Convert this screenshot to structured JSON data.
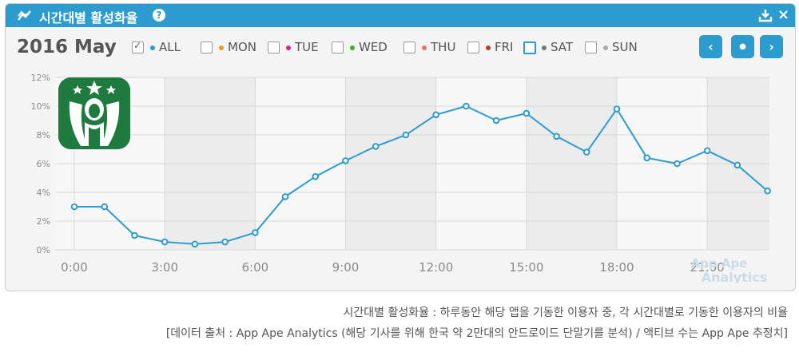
{
  "header": {
    "title": "시간대별 활성화율",
    "help_label": "?"
  },
  "controls": {
    "month": "2016 May",
    "filters": [
      {
        "label": "ALL",
        "color": "#2b9bd0",
        "checked": true
      },
      {
        "label": "MON",
        "color": "#e0a020",
        "checked": false
      },
      {
        "label": "TUE",
        "color": "#c0308a",
        "checked": false
      },
      {
        "label": "WED",
        "color": "#44aa33",
        "checked": false
      },
      {
        "label": "THU",
        "color": "#f07070",
        "checked": false
      },
      {
        "label": "FRI",
        "color": "#c03a2a",
        "checked": false
      },
      {
        "label": "SAT",
        "color": "#777777",
        "checked": false
      },
      {
        "label": "SUN",
        "color": "#aaaaaa",
        "checked": false
      }
    ]
  },
  "chart_data": {
    "type": "line",
    "x": [
      0,
      1,
      2,
      3,
      4,
      5,
      6,
      7,
      8,
      9,
      10,
      11,
      12,
      13,
      14,
      15,
      16,
      17,
      18,
      19,
      20,
      21,
      22,
      23
    ],
    "series": [
      {
        "values": [
          3.0,
          3.0,
          1.0,
          0.55,
          0.4,
          0.55,
          1.2,
          3.7,
          5.1,
          6.2,
          7.2,
          8.0,
          9.4,
          10.0,
          9.0,
          9.5,
          7.9,
          6.8,
          9.8,
          6.4,
          6.0,
          6.9,
          5.9,
          4.1
        ]
      }
    ],
    "xticks": [
      "0:00",
      "3:00",
      "6:00",
      "9:00",
      "12:00",
      "15:00",
      "18:00",
      "21:00"
    ],
    "yticks": [
      "0%",
      "2%",
      "4%",
      "6%",
      "8%",
      "10%",
      "12%"
    ],
    "ylim": [
      0,
      12
    ],
    "xlim": [
      0,
      23
    ],
    "grid": true,
    "line_color": "#2b9bd0",
    "watermark_1": "App Ape",
    "watermark_2": "Analytics"
  },
  "caption": {
    "line1": "시간대별 활성화율 : 하루동안 해당 앱을 기동한 이용자 중, 각 시간대별로 기동한 이용자의 비율",
    "line2": "[데이터 출처 : App Ape Analytics (해당 기사를 위해 한국 약 2만대의 안드로이드 단말기를 분석) / 액티브 수는 App Ape 추정치]"
  },
  "colors": {
    "accent": "#2b9bd0",
    "panel_bg": "#f4f4f4"
  }
}
